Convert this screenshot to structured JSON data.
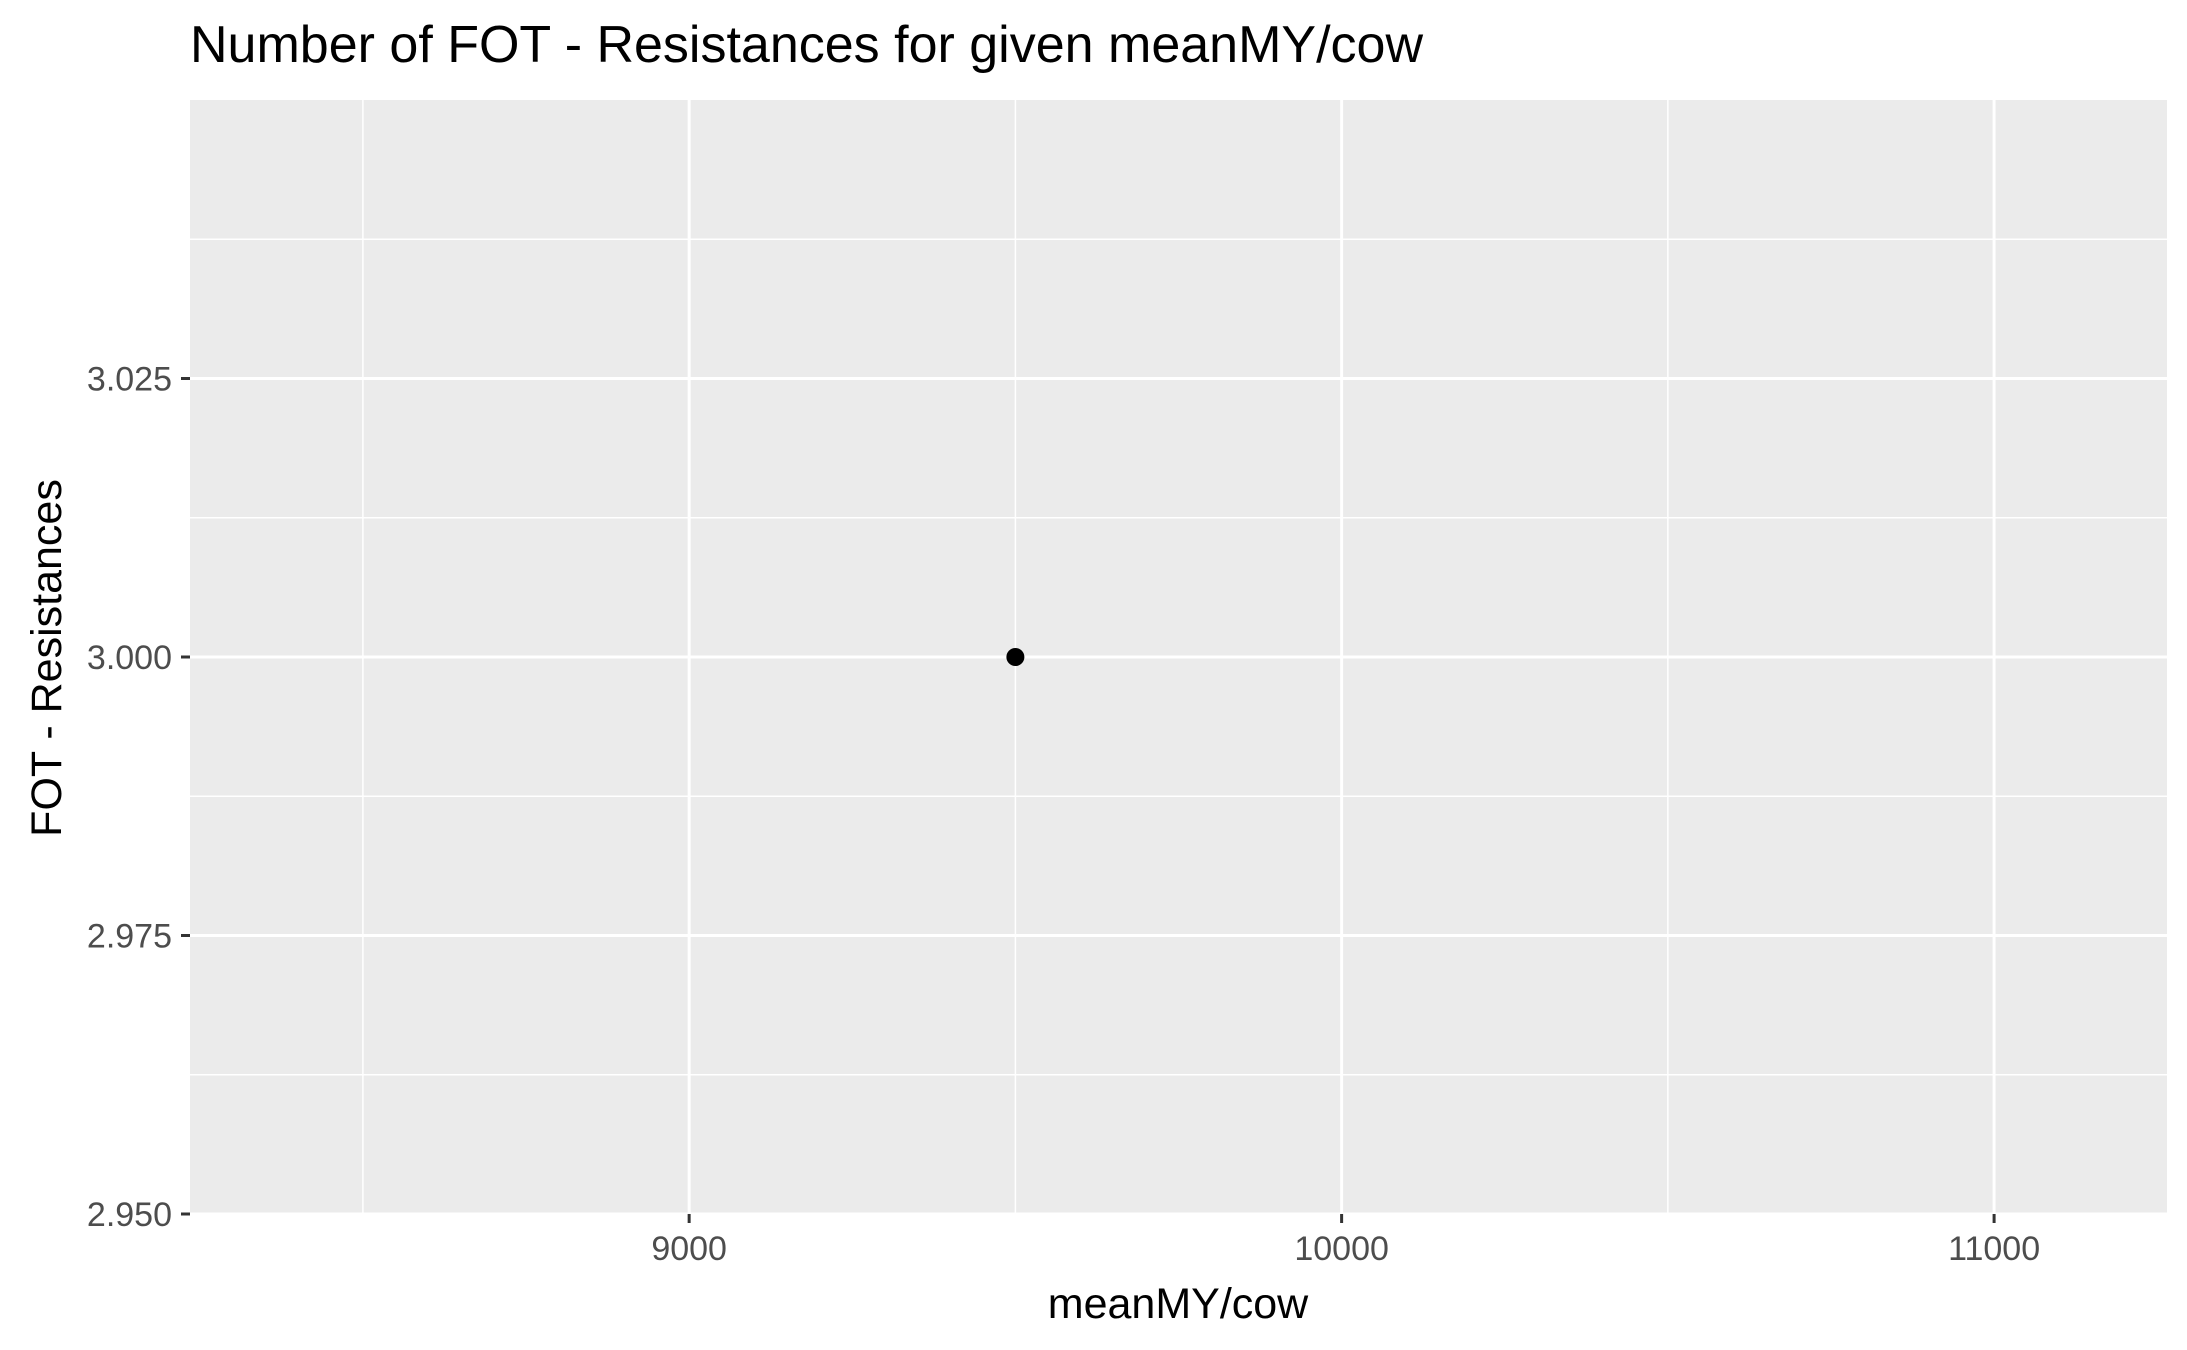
{
  "chart_data": {
    "type": "scatter",
    "title": "Number of FOT - Resistances for given meanMY/cow",
    "xlabel": "meanMY/cow",
    "ylabel": "FOT - Resistances",
    "xlim": [
      8235,
      11265
    ],
    "ylim": [
      2.95,
      3.05
    ],
    "x_ticks": [
      9000,
      10000,
      11000
    ],
    "x_tick_labels": [
      "9000",
      "10000",
      "11000"
    ],
    "y_ticks": [
      2.95,
      2.975,
      3.0,
      3.025
    ],
    "y_tick_labels": [
      "2.950",
      "2.975",
      "3.000",
      "3.025"
    ],
    "grid": true,
    "legend": "none",
    "panel_color": "#ebebeb",
    "grid_color": "#ffffff",
    "point_color": "#000000",
    "points": [
      {
        "x": 9500,
        "y": 3.0
      }
    ]
  }
}
